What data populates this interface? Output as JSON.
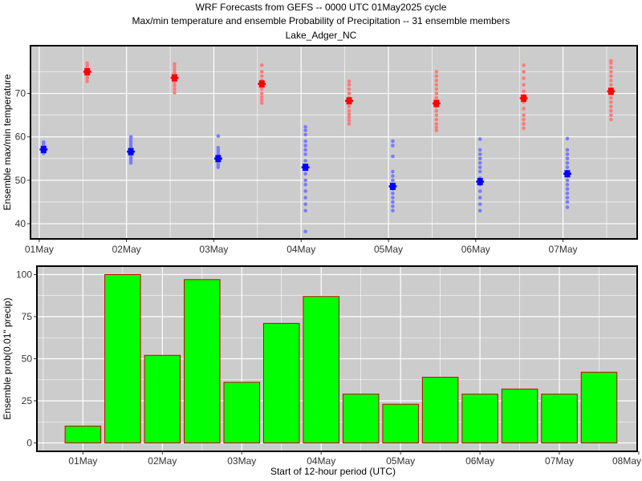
{
  "titles": {
    "line1": "WRF Forecasts from GEFS --  0000 UTC 01May2025  cycle",
    "line2": "Max/min temperature and ensemble Probability of Precipitation --  31 ensemble members",
    "line3": "Lake_Adger_NC"
  },
  "colors": {
    "panel_bg": "#cccccc",
    "grid": "#ffffff",
    "min_points": "#7b7bff",
    "min_mean": "#0000ff",
    "max_points": "#ff7b7b",
    "max_mean": "#ff0000",
    "bar_fill": "#00ff00",
    "bar_edge": "#cc0000"
  },
  "chart_data": [
    {
      "type": "scatter",
      "ylabel": "Ensemble max/min temperature",
      "xlabel": "",
      "ylim": [
        36.5,
        81
      ],
      "yticks": [
        40,
        50,
        60,
        70
      ],
      "xlim": [
        -0.1,
        6.85
      ],
      "xtick_labels": [
        "01May",
        "02May",
        "03May",
        "04May",
        "05May",
        "06May",
        "07May"
      ],
      "grid": true,
      "series": [
        {
          "kind": "min",
          "x": [
            0.05,
            1.05,
            2.05,
            3.05,
            4.05,
            5.05,
            6.05
          ],
          "mean": [
            57.1,
            56.6,
            55.0,
            53.0,
            48.6,
            49.7,
            51.5
          ],
          "members": [
            [
              56.2,
              56.5,
              56.8,
              57.0,
              57.3,
              57.6,
              58.0,
              58.5,
              58.8
            ],
            [
              54.0,
              54.5,
              55.0,
              55.5,
              56.0,
              56.5,
              57.0,
              57.5,
              58.0,
              58.5,
              59.0,
              59.5,
              60.0
            ],
            [
              53.0,
              53.5,
              54.0,
              54.5,
              55.0,
              55.5,
              56.0,
              56.5,
              57.0,
              57.5,
              60.2
            ],
            [
              38.2,
              43.0,
              44.5,
              46.0,
              47.5,
              49.0,
              50.0,
              51.5,
              53.0,
              54.5,
              56.0,
              57.0,
              58.0,
              59.0,
              60.5,
              61.5,
              62.3
            ],
            [
              43.0,
              44.0,
              45.0,
              46.0,
              47.0,
              48.0,
              49.0,
              50.0,
              51.0,
              52.0,
              55.5,
              58.0,
              59.0
            ],
            [
              43.0,
              44.5,
              46.0,
              47.5,
              49.0,
              50.5,
              52.0,
              53.0,
              54.0,
              55.0,
              56.0,
              57.0,
              59.5
            ],
            [
              43.8,
              45.0,
              46.0,
              47.0,
              48.0,
              49.0,
              50.0,
              51.0,
              52.0,
              53.0,
              54.0,
              55.0,
              56.0,
              57.0,
              59.6
            ]
          ]
        },
        {
          "kind": "max",
          "x": [
            0.55,
            1.55,
            2.55,
            3.55,
            4.55,
            5.55,
            6.55
          ],
          "mean": [
            75.0,
            73.6,
            72.2,
            68.3,
            67.7,
            68.9,
            70.5
          ],
          "members": [
            [
              72.8,
              73.5,
              74.0,
              74.5,
              75.0,
              75.5,
              76.0,
              76.5,
              77.0
            ],
            [
              70.2,
              71.0,
              71.8,
              72.5,
              73.2,
              74.0,
              74.8,
              75.5,
              76.2,
              76.8
            ],
            [
              67.8,
              68.5,
              69.2,
              70.0,
              71.0,
              72.0,
              73.0,
              74.0,
              75.0,
              76.5
            ],
            [
              63.0,
              63.8,
              64.5,
              65.2,
              66.0,
              67.0,
              68.0,
              69.0,
              70.0,
              71.0,
              72.0,
              72.8
            ],
            [
              61.5,
              62.2,
              63.0,
              64.0,
              65.0,
              66.0,
              67.0,
              68.0,
              69.0,
              70.0,
              71.0,
              72.0,
              73.0,
              74.0,
              75.0
            ],
            [
              62.0,
              63.0,
              64.0,
              65.0,
              66.5,
              68.0,
              69.5,
              70.5,
              72.0,
              73.5,
              75.0,
              76.5
            ],
            [
              64.0,
              65.0,
              66.0,
              67.0,
              68.0,
              69.0,
              70.0,
              71.0,
              72.0,
              73.0,
              74.0,
              75.0,
              76.0,
              77.0,
              77.5
            ]
          ]
        }
      ]
    },
    {
      "type": "bar",
      "ylabel": "Ensemble prob(0.01\" precip)",
      "xlabel": "Start of 12-hour period (UTC)",
      "ylim": [
        -5,
        105
      ],
      "yticks": [
        0,
        25,
        50,
        75,
        100
      ],
      "xlim": [
        -0.58,
        6.98
      ],
      "xtick_labels": [
        "01May",
        "02May",
        "03May",
        "04May",
        "05May",
        "06May",
        "07May",
        "08May"
      ],
      "grid": true,
      "x": [
        0.0,
        0.5,
        1.0,
        1.5,
        2.0,
        2.5,
        3.0,
        3.5,
        4.0,
        4.5,
        5.0,
        5.5,
        6.0,
        6.5
      ],
      "values": [
        10,
        100,
        52,
        97,
        36,
        71,
        87,
        29,
        23,
        39,
        29,
        32,
        29,
        42
      ]
    }
  ]
}
